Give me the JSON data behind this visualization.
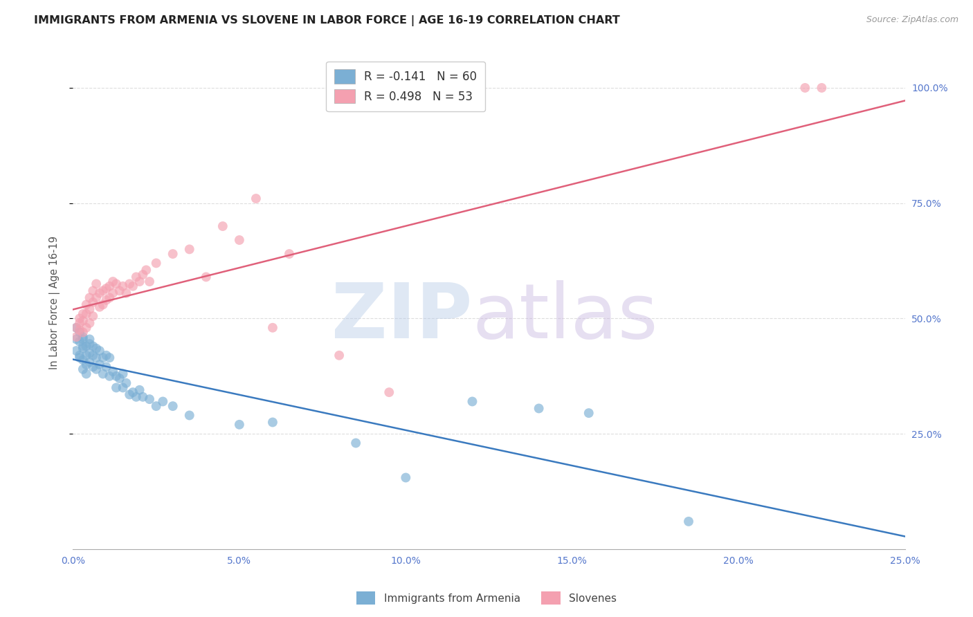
{
  "title": "IMMIGRANTS FROM ARMENIA VS SLOVENE IN LABOR FORCE | AGE 16-19 CORRELATION CHART",
  "source": "Source: ZipAtlas.com",
  "ylabel": "In Labor Force | Age 16-19",
  "xlim": [
    0.0,
    0.25
  ],
  "ylim": [
    0.0,
    1.07
  ],
  "yticks": [
    0.25,
    0.5,
    0.75,
    1.0
  ],
  "xticks": [
    0.0,
    0.05,
    0.1,
    0.15,
    0.2,
    0.25
  ],
  "armenia_R": -0.141,
  "armenia_N": 60,
  "slovene_R": 0.498,
  "slovene_N": 53,
  "armenia_color": "#7bafd4",
  "slovene_color": "#f4a0b0",
  "armenia_line_color": "#3a7abf",
  "slovene_line_color": "#e0607a",
  "legend_labels": [
    "Immigrants from Armenia",
    "Slovenes"
  ],
  "background_color": "#ffffff",
  "grid_color": "#dddddd",
  "tick_label_color": "#5577cc",
  "title_color": "#222222",
  "armenia_x": [
    0.001,
    0.001,
    0.001,
    0.002,
    0.002,
    0.002,
    0.002,
    0.003,
    0.003,
    0.003,
    0.003,
    0.003,
    0.003,
    0.004,
    0.004,
    0.004,
    0.004,
    0.005,
    0.005,
    0.005,
    0.005,
    0.006,
    0.006,
    0.006,
    0.007,
    0.007,
    0.007,
    0.008,
    0.008,
    0.009,
    0.009,
    0.01,
    0.01,
    0.011,
    0.011,
    0.012,
    0.013,
    0.013,
    0.014,
    0.015,
    0.015,
    0.016,
    0.017,
    0.018,
    0.019,
    0.02,
    0.021,
    0.023,
    0.025,
    0.027,
    0.03,
    0.035,
    0.05,
    0.06,
    0.085,
    0.1,
    0.12,
    0.14,
    0.155,
    0.185
  ],
  "armenia_y": [
    0.48,
    0.455,
    0.43,
    0.47,
    0.45,
    0.42,
    0.415,
    0.46,
    0.455,
    0.44,
    0.435,
    0.41,
    0.39,
    0.44,
    0.42,
    0.4,
    0.38,
    0.455,
    0.445,
    0.425,
    0.405,
    0.44,
    0.42,
    0.395,
    0.435,
    0.415,
    0.39,
    0.43,
    0.4,
    0.415,
    0.38,
    0.42,
    0.395,
    0.415,
    0.375,
    0.385,
    0.375,
    0.35,
    0.37,
    0.38,
    0.35,
    0.36,
    0.335,
    0.34,
    0.33,
    0.345,
    0.33,
    0.325,
    0.31,
    0.32,
    0.31,
    0.29,
    0.27,
    0.275,
    0.23,
    0.155,
    0.32,
    0.305,
    0.295,
    0.06
  ],
  "slovene_x": [
    0.001,
    0.001,
    0.002,
    0.002,
    0.002,
    0.003,
    0.003,
    0.003,
    0.004,
    0.004,
    0.004,
    0.005,
    0.005,
    0.005,
    0.006,
    0.006,
    0.006,
    0.007,
    0.007,
    0.008,
    0.008,
    0.009,
    0.009,
    0.01,
    0.01,
    0.011,
    0.011,
    0.012,
    0.012,
    0.013,
    0.014,
    0.015,
    0.016,
    0.017,
    0.018,
    0.019,
    0.02,
    0.021,
    0.022,
    0.023,
    0.025,
    0.03,
    0.035,
    0.04,
    0.045,
    0.05,
    0.055,
    0.06,
    0.065,
    0.08,
    0.095,
    0.22,
    0.225
  ],
  "slovene_y": [
    0.48,
    0.46,
    0.49,
    0.5,
    0.475,
    0.51,
    0.495,
    0.47,
    0.53,
    0.51,
    0.48,
    0.545,
    0.52,
    0.49,
    0.56,
    0.535,
    0.505,
    0.575,
    0.545,
    0.555,
    0.525,
    0.56,
    0.53,
    0.565,
    0.54,
    0.57,
    0.545,
    0.58,
    0.555,
    0.575,
    0.56,
    0.57,
    0.555,
    0.575,
    0.57,
    0.59,
    0.58,
    0.595,
    0.605,
    0.58,
    0.62,
    0.64,
    0.65,
    0.59,
    0.7,
    0.67,
    0.76,
    0.48,
    0.64,
    0.42,
    0.34,
    1.0,
    1.0
  ]
}
